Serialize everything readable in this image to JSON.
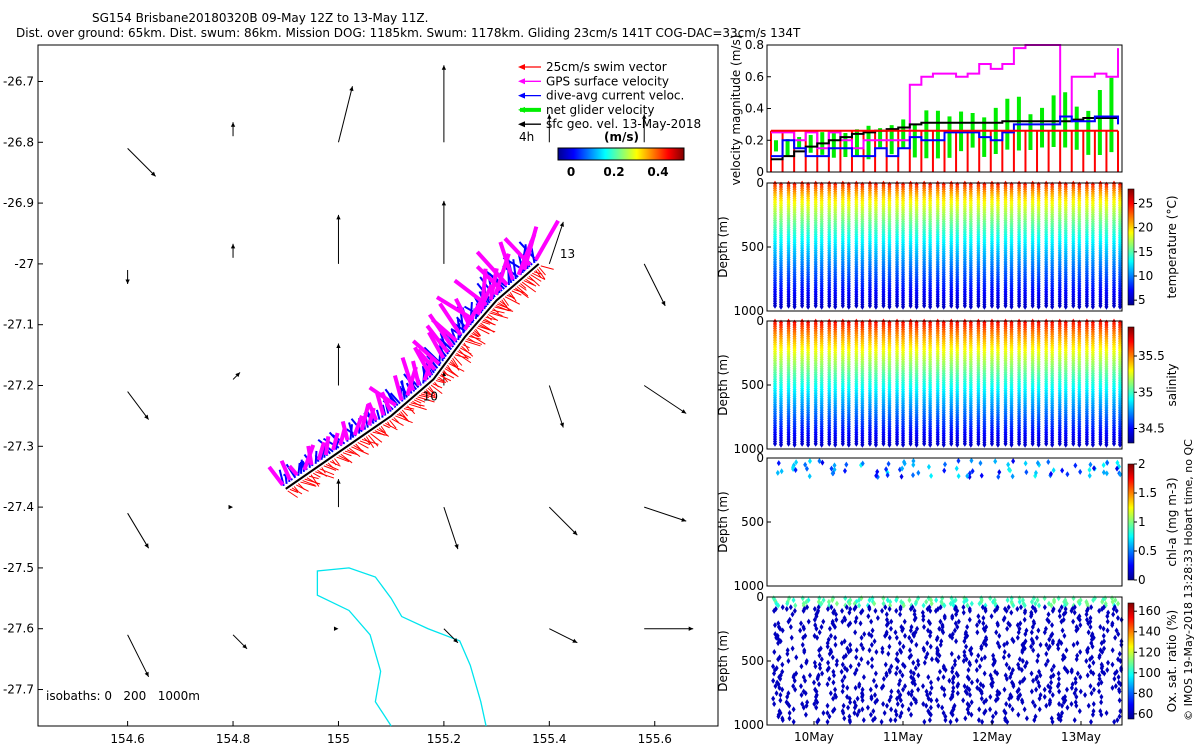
{
  "header": {
    "title": "SG154 Brisbane20180320B 09-May 12Z to 13-May 11Z.",
    "subtitle": "Dist. over ground: 65km. Dist. swum: 86km. Mission DOG: 1185km. Swum: 1178km. Gliding 23cm/s 141T COG-DAC=33cm/s 134T"
  },
  "footer": {
    "side_note": "© IMOS 19-May-2018 13:28:33 Hobart time, no QC"
  },
  "colors": {
    "swim_vector": "#ff0000",
    "gps_surface": "#ff00ff",
    "dive_avg": "#0000ff",
    "net_glider": "#00ee00",
    "sfc_geo": "#000000",
    "isobath": "#00e5ee"
  },
  "chart_data": [
    {
      "type": "map",
      "x_ticks": [
        "154.6",
        "154.8",
        "155",
        "155.2",
        "155.4",
        "155.6"
      ],
      "y_ticks": [
        "-26.7",
        "-26.8",
        "-26.9",
        "-27",
        "-27.1",
        "-27.2",
        "-27.3",
        "-27.4",
        "-27.5",
        "-27.6",
        "-27.7"
      ],
      "xlim": [
        154.43,
        155.72
      ],
      "ylim": [
        -27.76,
        -26.64
      ],
      "legend": {
        "placement": "top-right",
        "entries": [
          {
            "label": "25cm/s swim vector",
            "color": "#ff0000",
            "thick": false
          },
          {
            "label": "GPS surface velocity",
            "color": "#ff00ff",
            "thick": false
          },
          {
            "label": "dive-avg current veloc.",
            "color": "#0000ff",
            "thick": false
          },
          {
            "label": "net glider velocity",
            "color": "#00ee00",
            "thick": true
          },
          {
            "label": "sfc geo. vel. 13-May-2018",
            "color": "#000000",
            "thick": false
          }
        ]
      },
      "colorbar": {
        "label": "4h",
        "unit": "(m/s)",
        "ticks": [
          "0",
          "0.2",
          "0.4"
        ]
      },
      "isobaths_label": "isobaths: 0   200   1000m",
      "track_labels": [
        {
          "text": "10",
          "lon": 155.16,
          "lat": -27.225
        },
        {
          "text": "13",
          "lon": 155.42,
          "lat": -26.99
        }
      ],
      "track": [
        [
          154.9,
          -27.37
        ],
        [
          155.0,
          -27.31
        ],
        [
          155.1,
          -27.25
        ],
        [
          155.18,
          -27.19
        ],
        [
          155.24,
          -27.12
        ],
        [
          155.3,
          -27.06
        ],
        [
          155.38,
          -27.0
        ]
      ],
      "geo_vectors": [
        {
          "lon": 154.6,
          "lat": -26.81,
          "u": 0.02,
          "v": -0.02
        },
        {
          "lon": 154.8,
          "lat": -26.79,
          "u": 0.0,
          "v": 0.01
        },
        {
          "lon": 155.0,
          "lat": -26.8,
          "u": 0.01,
          "v": 0.04
        },
        {
          "lon": 155.2,
          "lat": -26.8,
          "u": 0.0,
          "v": 0.055
        },
        {
          "lon": 155.4,
          "lat": -26.8,
          "u": 0.0,
          "v": 0.02
        },
        {
          "lon": 155.58,
          "lat": -26.8,
          "u": 0.0,
          "v": 0.02
        },
        {
          "lon": 154.6,
          "lat": -27.01,
          "u": 0.0,
          "v": -0.01
        },
        {
          "lon": 154.8,
          "lat": -26.99,
          "u": 0.0,
          "v": 0.01
        },
        {
          "lon": 155.0,
          "lat": -27.0,
          "u": 0.0,
          "v": 0.035
        },
        {
          "lon": 155.2,
          "lat": -27.0,
          "u": 0.0,
          "v": 0.045
        },
        {
          "lon": 155.4,
          "lat": -27.0,
          "u": 0.01,
          "v": 0.03
        },
        {
          "lon": 155.58,
          "lat": -27.0,
          "u": 0.015,
          "v": -0.03
        },
        {
          "lon": 154.6,
          "lat": -27.21,
          "u": 0.015,
          "v": -0.02
        },
        {
          "lon": 154.8,
          "lat": -27.19,
          "u": 0.005,
          "v": 0.005
        },
        {
          "lon": 155.0,
          "lat": -27.2,
          "u": 0.0,
          "v": 0.03
        },
        {
          "lon": 155.2,
          "lat": -27.2,
          "u": 0.0,
          "v": 0.01
        },
        {
          "lon": 155.4,
          "lat": -27.2,
          "u": 0.01,
          "v": -0.03
        },
        {
          "lon": 155.58,
          "lat": -27.2,
          "u": 0.03,
          "v": -0.02
        },
        {
          "lon": 154.6,
          "lat": -27.41,
          "u": 0.015,
          "v": -0.025
        },
        {
          "lon": 154.8,
          "lat": -27.4,
          "u": 0.0,
          "v": 0.0
        },
        {
          "lon": 155.0,
          "lat": -27.4,
          "u": 0.0,
          "v": 0.02
        },
        {
          "lon": 155.2,
          "lat": -27.4,
          "u": 0.01,
          "v": -0.03
        },
        {
          "lon": 155.4,
          "lat": -27.4,
          "u": 0.02,
          "v": -0.02
        },
        {
          "lon": 155.58,
          "lat": -27.4,
          "u": 0.03,
          "v": -0.01
        },
        {
          "lon": 154.6,
          "lat": -27.61,
          "u": 0.015,
          "v": -0.03
        },
        {
          "lon": 154.8,
          "lat": -27.61,
          "u": 0.01,
          "v": -0.01
        },
        {
          "lon": 155.0,
          "lat": -27.6,
          "u": 0.0,
          "v": 0.0
        },
        {
          "lon": 155.2,
          "lat": -27.6,
          "u": 0.01,
          "v": -0.01
        },
        {
          "lon": 155.4,
          "lat": -27.6,
          "u": 0.02,
          "v": -0.01
        },
        {
          "lon": 155.58,
          "lat": -27.6,
          "u": 0.035,
          "v": 0.0
        }
      ]
    },
    {
      "type": "line",
      "ylabel": "velocity magnitude (m/s)",
      "ylim": [
        0,
        0.8
      ],
      "y_ticks": [
        "0",
        "0.2",
        "0.4",
        "0.6",
        "0.8"
      ],
      "x_ticks": [],
      "series": [
        {
          "color": "#ff00ff",
          "values": [
            0.25,
            0.25,
            0.2,
            0.25,
            0.15,
            0.25,
            0.2,
            0.15,
            0.2,
            0.2,
            0.2,
            0.2,
            0.55,
            0.6,
            0.62,
            0.62,
            0.6,
            0.62,
            0.68,
            0.65,
            0.68,
            0.78,
            0.8,
            0.8,
            0.8,
            0.35,
            0.6,
            0.6,
            0.62,
            0.6,
            0.78
          ]
        },
        {
          "color": "#000000",
          "values": [
            0.08,
            0.1,
            0.13,
            0.16,
            0.18,
            0.2,
            0.22,
            0.24,
            0.25,
            0.26,
            0.27,
            0.28,
            0.3,
            0.31,
            0.31,
            0.31,
            0.31,
            0.31,
            0.31,
            0.31,
            0.32,
            0.32,
            0.32,
            0.32,
            0.32,
            0.32,
            0.33,
            0.34,
            0.34,
            0.34,
            0.34
          ]
        },
        {
          "color": "#0000ff",
          "values": [
            0.1,
            0.2,
            0.15,
            0.1,
            0.1,
            0.15,
            0.15,
            0.1,
            0.1,
            0.15,
            0.1,
            0.15,
            0.22,
            0.2,
            0.2,
            0.25,
            0.25,
            0.25,
            0.22,
            0.2,
            0.25,
            0.3,
            0.3,
            0.3,
            0.3,
            0.35,
            0.32,
            0.32,
            0.35,
            0.35,
            0.3
          ]
        },
        {
          "color": "#ff0000",
          "values": [
            0.26,
            0.26,
            0.26,
            0.26,
            0.26,
            0.26,
            0.26,
            0.26,
            0.26,
            0.26,
            0.26,
            0.26,
            0.26,
            0.26,
            0.26,
            0.26,
            0.26,
            0.26,
            0.26,
            0.26,
            0.26,
            0.26,
            0.26,
            0.26,
            0.26,
            0.26,
            0.26,
            0.26,
            0.26,
            0.26,
            0.26
          ]
        }
      ]
    },
    {
      "type": "scatter",
      "ylabel": "Depth (m)",
      "y_ticks": [
        "0",
        "500",
        "1000"
      ],
      "ylim": [
        0,
        1000
      ],
      "colorbar_label": "temperature (°C)",
      "colorbar_ticks": [
        "25",
        "20",
        "15",
        "10",
        "5"
      ],
      "clim": [
        4,
        28
      ]
    },
    {
      "type": "scatter",
      "ylabel": "Depth (m)",
      "y_ticks": [
        "0",
        "500",
        "1000"
      ],
      "ylim": [
        0,
        1000
      ],
      "colorbar_label": "salinity",
      "colorbar_ticks": [
        "35.5",
        "35",
        "34.5"
      ],
      "clim": [
        34.3,
        35.9
      ]
    },
    {
      "type": "scatter",
      "ylabel": "Depth (m)",
      "y_ticks": [
        "0",
        "500",
        "1000"
      ],
      "ylim": [
        0,
        1000
      ],
      "colorbar_label": "chl-a (mg m-3)",
      "colorbar_ticks": [
        "2",
        "1.5",
        "1",
        "0.5",
        "0"
      ],
      "clim": [
        0,
        2
      ]
    },
    {
      "type": "scatter",
      "ylabel": "Depth (m)",
      "y_ticks": [
        "0",
        "500",
        "1000"
      ],
      "ylim": [
        0,
        1000
      ],
      "x_ticks": [
        "10May",
        "11May",
        "12May",
        "13May"
      ],
      "colorbar_label": "Ox. sat. ratio (%)",
      "colorbar_ticks": [
        "160",
        "140",
        "120",
        "100",
        "80",
        "60"
      ],
      "clim": [
        55,
        168
      ]
    }
  ]
}
